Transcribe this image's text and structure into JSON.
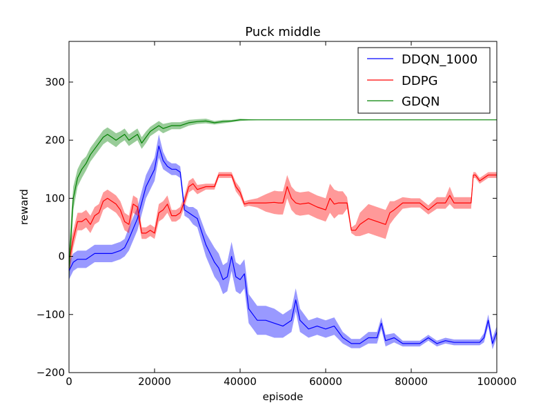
{
  "chart_data": {
    "type": "line",
    "title": "Puck middle",
    "xlabel": "episode",
    "ylabel": "reward",
    "xlim": [
      0,
      100000
    ],
    "ylim": [
      -200,
      370
    ],
    "xticks": [
      0,
      20000,
      40000,
      60000,
      80000,
      100000
    ],
    "xtick_labels": [
      "0",
      "20000",
      "40000",
      "60000",
      "80000",
      "100000"
    ],
    "yticks": [
      -200,
      -100,
      0,
      100,
      200,
      300
    ],
    "ytick_labels": [
      "−200",
      "−100",
      "0",
      "100",
      "200",
      "300"
    ],
    "grid": false,
    "legend_position": "top-right",
    "series": [
      {
        "name": "DDQN_1000",
        "color": "#0000ff",
        "x": [
          0,
          1000,
          2000,
          4000,
          6000,
          8000,
          10000,
          12000,
          13000,
          14000,
          16000,
          18000,
          20000,
          21000,
          22000,
          23000,
          24000,
          25000,
          26000,
          27000,
          28000,
          29000,
          30000,
          32000,
          34000,
          35000,
          36000,
          37000,
          38000,
          39000,
          40000,
          41000,
          42000,
          43000,
          44000,
          46000,
          48000,
          50000,
          52000,
          53000,
          54000,
          56000,
          58000,
          60000,
          62000,
          64000,
          66000,
          68000,
          70000,
          72000,
          73000,
          74000,
          76000,
          78000,
          80000,
          82000,
          84000,
          86000,
          88000,
          90000,
          92000,
          94000,
          96000,
          97000,
          98000,
          99000,
          100000
        ],
        "values": [
          -25,
          -10,
          -5,
          -5,
          5,
          5,
          5,
          10,
          15,
          30,
          65,
          120,
          150,
          190,
          165,
          155,
          150,
          150,
          145,
          80,
          75,
          70,
          65,
          20,
          -10,
          -20,
          -40,
          -35,
          0,
          -35,
          -40,
          -30,
          -90,
          -100,
          -110,
          -110,
          -115,
          -120,
          -110,
          -75,
          -110,
          -125,
          -120,
          -125,
          -120,
          -140,
          -150,
          -150,
          -140,
          -140,
          -115,
          -145,
          -140,
          -150,
          -150,
          -150,
          -140,
          -150,
          -145,
          -148,
          -148,
          -148,
          -148,
          -140,
          -110,
          -150,
          -130
        ],
        "band": [
          15,
          15,
          15,
          15,
          15,
          15,
          15,
          15,
          15,
          20,
          20,
          20,
          20,
          20,
          15,
          10,
          10,
          10,
          10,
          10,
          10,
          15,
          15,
          20,
          25,
          25,
          25,
          25,
          25,
          25,
          25,
          25,
          25,
          25,
          25,
          25,
          25,
          20,
          20,
          20,
          20,
          15,
          15,
          15,
          15,
          10,
          8,
          8,
          10,
          10,
          10,
          10,
          8,
          5,
          5,
          5,
          5,
          5,
          5,
          5,
          5,
          5,
          5,
          8,
          10,
          10,
          10
        ]
      },
      {
        "name": "DDPG",
        "color": "#ff0000",
        "x": [
          0,
          500,
          1000,
          2000,
          3000,
          4000,
          5000,
          6000,
          7000,
          8000,
          9000,
          10000,
          11000,
          12000,
          13000,
          14000,
          15000,
          16000,
          17000,
          18000,
          19000,
          20000,
          21000,
          22000,
          23000,
          24000,
          25000,
          26000,
          27000,
          28000,
          29000,
          30000,
          32000,
          34000,
          35000,
          36000,
          38000,
          39000,
          40000,
          41000,
          42000,
          44000,
          46000,
          48000,
          49000,
          50000,
          51000,
          52000,
          53000,
          54000,
          56000,
          58000,
          60000,
          61000,
          62000,
          63000,
          64000,
          65000,
          66000,
          67000,
          68000,
          70000,
          72000,
          74000,
          75000,
          76000,
          78000,
          80000,
          82000,
          84000,
          86000,
          88000,
          89000,
          90000,
          92000,
          94000,
          94500,
          95000,
          96000,
          98000,
          100000
        ],
        "values": [
          -10,
          10,
          30,
          60,
          60,
          65,
          55,
          70,
          75,
          95,
          100,
          95,
          90,
          80,
          60,
          55,
          90,
          85,
          40,
          40,
          45,
          40,
          75,
          80,
          90,
          70,
          70,
          75,
          95,
          120,
          125,
          115,
          120,
          120,
          140,
          140,
          140,
          120,
          110,
          90,
          92,
          92,
          92,
          93,
          92,
          92,
          120,
          100,
          92,
          90,
          92,
          85,
          80,
          100,
          90,
          92,
          92,
          92,
          45,
          45,
          55,
          65,
          60,
          55,
          75,
          80,
          92,
          92,
          92,
          80,
          92,
          92,
          105,
          92,
          92,
          92,
          140,
          140,
          130,
          140,
          140
        ],
        "band": [
          20,
          20,
          15,
          15,
          15,
          15,
          15,
          15,
          15,
          15,
          15,
          15,
          15,
          15,
          15,
          15,
          15,
          15,
          10,
          10,
          10,
          10,
          15,
          15,
          15,
          10,
          10,
          10,
          10,
          10,
          10,
          8,
          5,
          5,
          5,
          5,
          5,
          8,
          8,
          5,
          5,
          8,
          15,
          20,
          20,
          20,
          20,
          20,
          20,
          20,
          20,
          20,
          20,
          25,
          25,
          20,
          20,
          10,
          5,
          10,
          20,
          25,
          25,
          25,
          20,
          15,
          10,
          8,
          8,
          8,
          10,
          10,
          15,
          10,
          10,
          10,
          5,
          5,
          5,
          5,
          5
        ]
      },
      {
        "name": "GDQN",
        "color": "#008000",
        "x": [
          0,
          500,
          1000,
          2000,
          3000,
          4000,
          5000,
          6000,
          7000,
          8000,
          9000,
          10000,
          11000,
          12000,
          13000,
          14000,
          15000,
          16000,
          17000,
          18000,
          19000,
          20000,
          21000,
          22000,
          24000,
          26000,
          28000,
          30000,
          32000,
          34000,
          36000,
          38000,
          40000,
          42000,
          45000,
          50000,
          60000,
          70000,
          80000,
          90000,
          100000
        ],
        "values": [
          -20,
          40,
          100,
          135,
          150,
          160,
          175,
          185,
          195,
          205,
          210,
          205,
          200,
          205,
          210,
          200,
          205,
          210,
          195,
          205,
          215,
          220,
          225,
          220,
          225,
          225,
          230,
          232,
          233,
          230,
          232,
          233,
          235,
          235,
          235,
          235,
          235,
          235,
          235,
          235,
          235
        ],
        "band": [
          30,
          30,
          20,
          15,
          15,
          12,
          12,
          12,
          12,
          12,
          12,
          12,
          12,
          10,
          10,
          10,
          10,
          10,
          10,
          10,
          8,
          8,
          8,
          8,
          6,
          6,
          5,
          4,
          4,
          3,
          3,
          2,
          2,
          1,
          0,
          0,
          0,
          0,
          0,
          0,
          0
        ]
      }
    ]
  }
}
